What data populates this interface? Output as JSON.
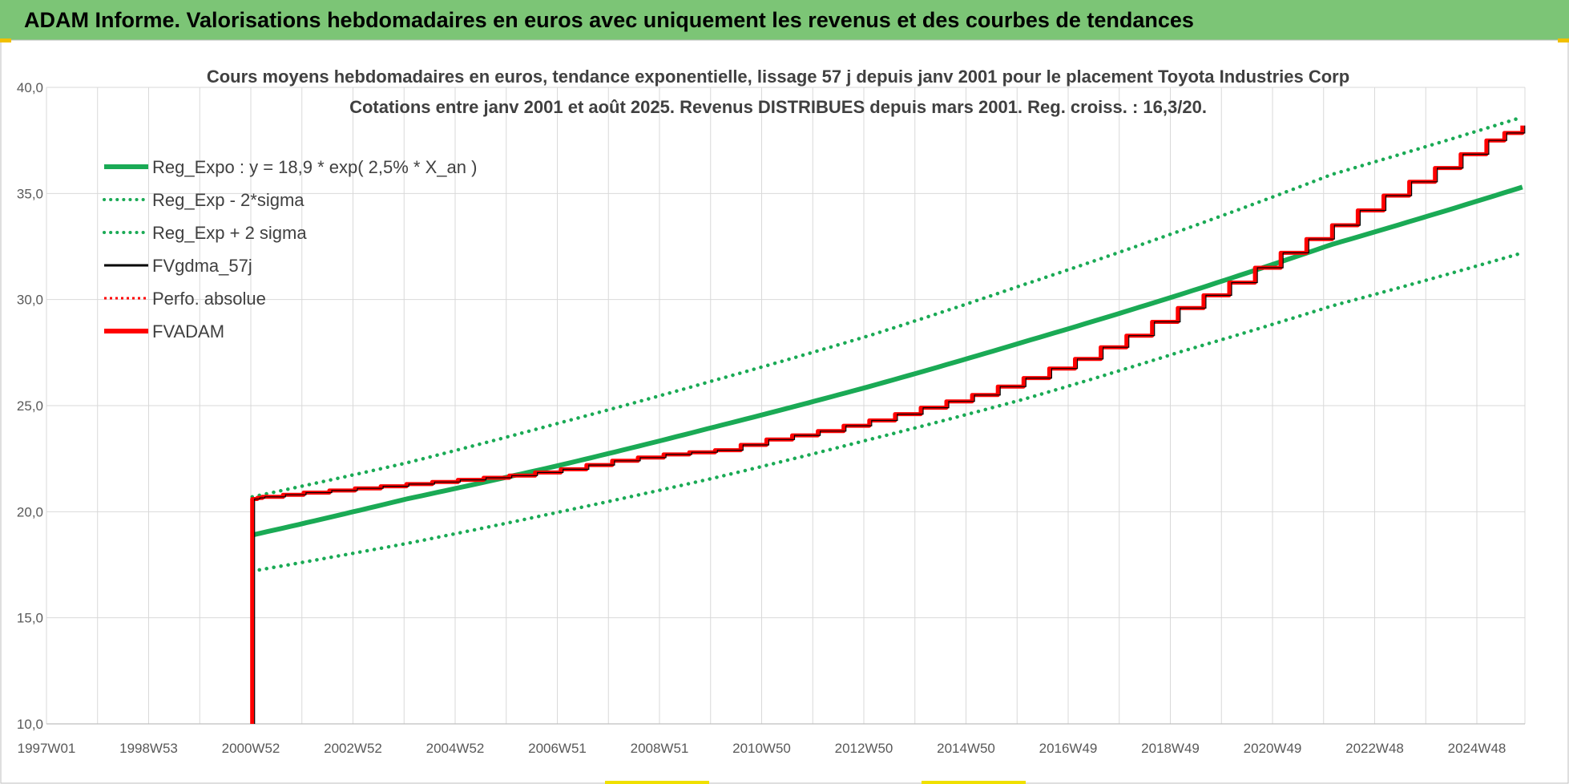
{
  "banner": {
    "title": "ADAM Informe. Valorisations hebdomadaires en euros avec uniquement les revenus et des courbes de tendances"
  },
  "colors": {
    "banner_bg": "#7cc576",
    "reg_green": "#1aaa55",
    "fvadam_red": "#ff0000",
    "black_line": "#000000",
    "grid": "#d9d9d9"
  },
  "chart_data": {
    "type": "line",
    "title_lines": [
      "Cours moyens hebdomadaires en euros, tendance exponentielle, lissage 57 j depuis janv 2001 pour le placement Toyota Industries Corp",
      "Cotations entre janv 2001 et août 2025. Revenus DISTRIBUES depuis mars 2001. Reg. croiss. : 16,3/20."
    ],
    "x_tick_labels": [
      "1997W01",
      "1998W53",
      "2000W52",
      "2002W52",
      "2004W52",
      "2006W51",
      "2008W51",
      "2010W50",
      "2012W50",
      "2014W50",
      "2016W49",
      "2018W49",
      "2020W49",
      "2022W48",
      "2024W48"
    ],
    "y_tick_labels": [
      "10,0",
      "15,0",
      "20,0",
      "25,0",
      "30,0",
      "35,0",
      "40,0"
    ],
    "ylim": [
      10,
      40
    ],
    "xlim": [
      1997.0,
      2025.75
    ],
    "grid": true,
    "legend_position": "top-left",
    "legend": [
      {
        "label": "Reg_Expo : y = 18,9 * exp( 2,5% *  X_an )",
        "color": "#1aaa55",
        "style": "solid-thick"
      },
      {
        "label": "Reg_Exp - 2*sigma",
        "color": "#1aaa55",
        "style": "dotted"
      },
      {
        "label": "Reg_Exp + 2 sigma",
        "color": "#1aaa55",
        "style": "dotted"
      },
      {
        "label": "FVgdma_57j",
        "color": "#000000",
        "style": "solid-thin"
      },
      {
        "label": "Perfo. absolue",
        "color": "#ff0000",
        "style": "dotted-thin"
      },
      {
        "label": "FVADAM",
        "color": "#ff0000",
        "style": "solid-thick"
      }
    ],
    "series": [
      {
        "name": "Reg_Expo : y = 18,9 * exp( 2,5% *  X_an )",
        "x": [
          2001.0,
          2004.0,
          2007.0,
          2010.0,
          2013.0,
          2016.0,
          2019.0,
          2022.0,
          2025.7
        ],
        "y": [
          18.9,
          20.6,
          22.2,
          24.0,
          25.9,
          28.0,
          30.2,
          32.6,
          35.3
        ]
      },
      {
        "name": "Reg_Exp - 2*sigma",
        "x": [
          2001.0,
          2004.0,
          2007.0,
          2010.0,
          2013.0,
          2016.0,
          2019.0,
          2022.0,
          2025.7
        ],
        "y": [
          17.2,
          18.5,
          20.0,
          21.6,
          23.4,
          25.3,
          27.5,
          29.7,
          32.2
        ]
      },
      {
        "name": "Reg_Exp + 2 sigma",
        "x": [
          2001.0,
          2004.0,
          2007.0,
          2010.0,
          2013.0,
          2016.0,
          2019.0,
          2022.0,
          2025.7
        ],
        "y": [
          20.7,
          22.3,
          24.2,
          26.2,
          28.3,
          30.7,
          33.2,
          35.9,
          38.6
        ]
      },
      {
        "name": "FVADAM",
        "x": [
          2001.0,
          2001.0,
          2001.2,
          2002.0,
          2003.0,
          2004.0,
          2005.0,
          2006.0,
          2007.0,
          2008.0,
          2009.0,
          2010.0,
          2011.0,
          2012.0,
          2013.0,
          2014.0,
          2015.0,
          2016.0,
          2017.0,
          2018.0,
          2019.0,
          2020.0,
          2021.0,
          2022.0,
          2023.0,
          2024.0,
          2025.0,
          2025.7
        ],
        "y": [
          10.0,
          20.6,
          20.7,
          20.9,
          21.1,
          21.3,
          21.5,
          21.7,
          22.0,
          22.4,
          22.7,
          22.9,
          23.4,
          23.8,
          24.3,
          24.9,
          25.5,
          26.3,
          27.2,
          28.3,
          29.6,
          30.8,
          32.2,
          33.5,
          34.9,
          36.2,
          37.5,
          38.2
        ]
      }
    ],
    "step_series": "FVADAM"
  }
}
